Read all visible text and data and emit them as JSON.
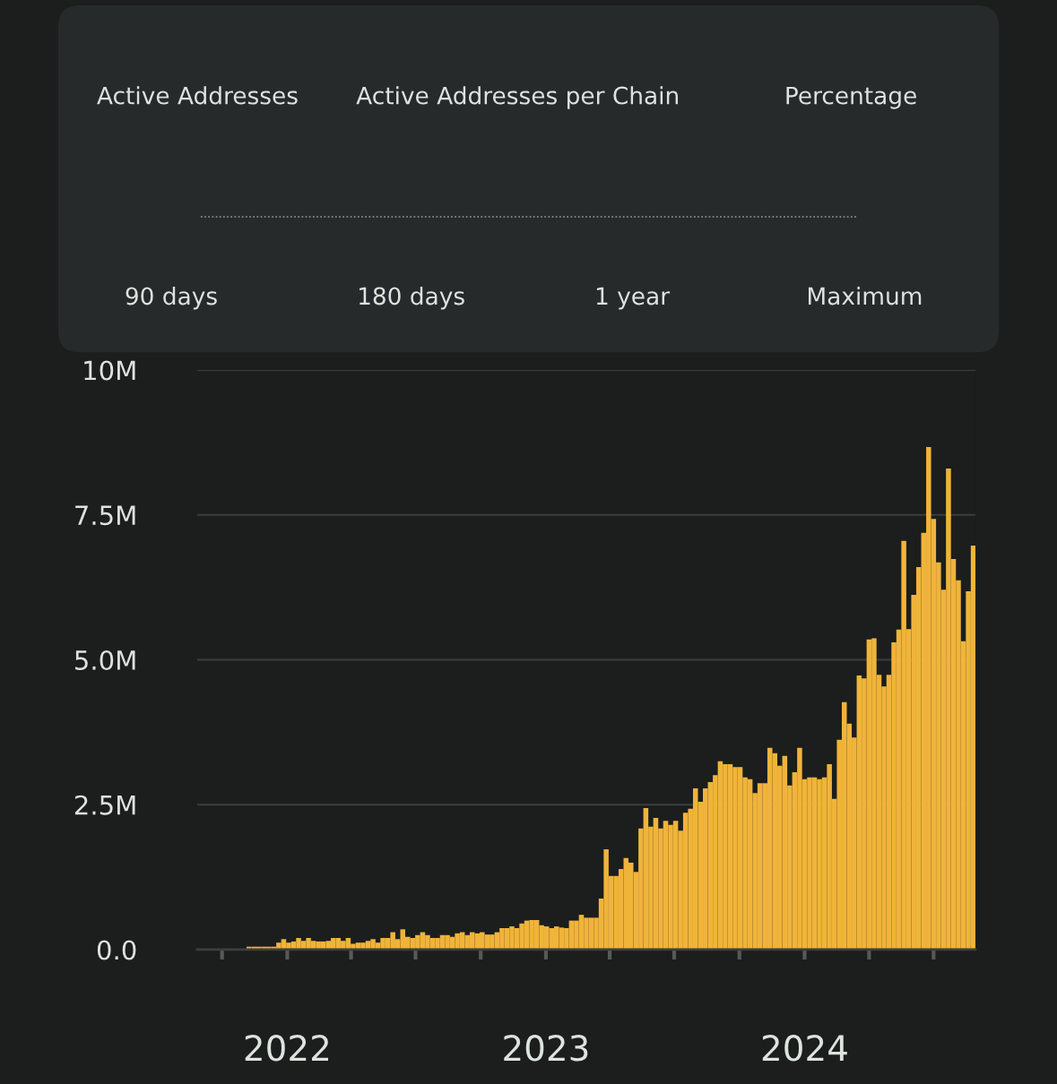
{
  "chart_data": {
    "type": "bar",
    "annotations": [
      "Active Addresses",
      "Active Addresses per Chain",
      "Percentage",
      "90 days",
      "180 days",
      "1 year",
      "Maximum"
    ],
    "x": [
      "2021-11-08",
      "2021-11-15",
      "2021-11-22",
      "2021-11-29",
      "2021-12-06",
      "2021-12-13",
      "2021-12-20",
      "2021-12-27",
      "2022-01-03",
      "2022-01-10",
      "2022-01-17",
      "2022-01-24",
      "2022-01-31",
      "2022-02-07",
      "2022-02-14",
      "2022-02-21",
      "2022-02-28",
      "2022-03-07",
      "2022-03-14",
      "2022-03-21",
      "2022-03-28",
      "2022-04-04",
      "2022-04-11",
      "2022-04-18",
      "2022-04-25",
      "2022-05-02",
      "2022-05-09",
      "2022-05-16",
      "2022-05-23",
      "2022-05-30",
      "2022-06-06",
      "2022-06-13",
      "2022-06-20",
      "2022-06-27",
      "2022-07-04",
      "2022-07-11",
      "2022-07-18",
      "2022-07-25",
      "2022-08-01",
      "2022-08-08",
      "2022-08-15",
      "2022-08-22",
      "2022-08-29",
      "2022-09-05",
      "2022-09-12",
      "2022-09-19",
      "2022-09-26",
      "2022-10-03",
      "2022-10-10",
      "2022-10-17",
      "2022-10-24",
      "2022-10-31",
      "2022-11-07",
      "2022-11-14",
      "2022-11-21",
      "2022-11-28",
      "2022-12-05",
      "2022-12-12",
      "2022-12-19",
      "2022-12-26",
      "2023-01-02",
      "2023-01-09",
      "2023-01-16",
      "2023-01-23",
      "2023-01-30",
      "2023-02-06",
      "2023-02-13",
      "2023-02-20",
      "2023-02-27",
      "2023-03-06",
      "2023-03-13",
      "2023-03-20",
      "2023-03-27",
      "2023-04-03",
      "2023-04-10",
      "2023-04-17",
      "2023-04-24",
      "2023-05-01",
      "2023-05-08",
      "2023-05-15",
      "2023-05-22",
      "2023-05-29",
      "2023-06-05",
      "2023-06-12",
      "2023-06-19",
      "2023-06-26",
      "2023-07-03",
      "2023-07-10",
      "2023-07-17",
      "2023-07-24",
      "2023-07-31",
      "2023-08-07",
      "2023-08-14",
      "2023-08-21",
      "2023-08-28",
      "2023-09-04",
      "2023-09-11",
      "2023-09-18",
      "2023-09-25",
      "2023-10-02",
      "2023-10-09",
      "2023-10-16",
      "2023-10-23",
      "2023-10-30",
      "2023-11-06",
      "2023-11-13",
      "2023-11-20",
      "2023-11-27",
      "2023-12-04",
      "2023-12-11",
      "2023-12-18",
      "2023-12-25",
      "2024-01-01",
      "2024-01-08",
      "2024-01-15",
      "2024-01-22",
      "2024-01-29",
      "2024-02-05",
      "2024-02-12",
      "2024-02-19",
      "2024-02-26",
      "2024-03-04",
      "2024-03-11",
      "2024-03-18",
      "2024-03-25",
      "2024-04-01",
      "2024-04-08",
      "2024-04-15",
      "2024-04-22",
      "2024-04-29",
      "2024-05-06",
      "2024-05-13",
      "2024-05-20",
      "2024-05-27",
      "2024-06-03",
      "2024-06-10",
      "2024-06-17",
      "2024-06-24",
      "2024-07-01",
      "2024-07-08",
      "2024-07-15",
      "2024-07-22",
      "2024-07-29",
      "2024-08-05",
      "2024-08-12",
      "2024-08-19",
      "2024-08-26"
    ],
    "values": [
      0.05,
      0.05,
      0.05,
      0.05,
      0.05,
      0.05,
      0.12,
      0.18,
      0.12,
      0.14,
      0.2,
      0.15,
      0.2,
      0.15,
      0.14,
      0.14,
      0.15,
      0.2,
      0.2,
      0.15,
      0.2,
      0.1,
      0.12,
      0.12,
      0.15,
      0.18,
      0.12,
      0.2,
      0.2,
      0.3,
      0.18,
      0.35,
      0.22,
      0.2,
      0.25,
      0.3,
      0.25,
      0.2,
      0.2,
      0.25,
      0.25,
      0.22,
      0.28,
      0.3,
      0.25,
      0.3,
      0.28,
      0.3,
      0.26,
      0.26,
      0.3,
      0.37,
      0.37,
      0.4,
      0.37,
      0.45,
      0.5,
      0.51,
      0.51,
      0.42,
      0.4,
      0.37,
      0.4,
      0.38,
      0.37,
      0.5,
      0.5,
      0.6,
      0.55,
      0.55,
      0.55,
      0.88,
      1.73,
      1.27,
      1.27,
      1.39,
      1.58,
      1.5,
      1.34,
      2.09,
      2.44,
      2.12,
      2.27,
      2.09,
      2.22,
      2.15,
      2.22,
      2.05,
      2.36,
      2.43,
      2.78,
      2.55,
      2.78,
      2.89,
      3.01,
      3.25,
      3.2,
      3.2,
      3.15,
      3.15,
      2.97,
      2.94,
      2.7,
      2.87,
      2.87,
      3.48,
      3.39,
      3.17,
      3.34,
      2.83,
      3.06,
      3.48,
      2.94,
      2.97,
      2.97,
      2.94,
      2.97,
      3.2,
      2.6,
      3.62,
      4.27,
      3.9,
      3.66,
      4.73,
      4.68,
      5.35,
      5.37,
      4.74,
      4.54,
      4.74,
      5.3,
      5.52,
      7.05,
      5.53,
      6.12,
      6.6,
      7.19,
      8.67,
      7.43,
      6.68,
      6.21,
      8.3,
      6.74,
      6.37,
      5.32,
      6.18,
      6.97
    ],
    "color": "#f0b43a",
    "xlim": [
      "2021-08-27",
      "2024-08-29"
    ],
    "xticks": [
      {
        "value": "2021-10-01",
        "label": null
      },
      {
        "value": "2022-01-01",
        "label": "2022"
      },
      {
        "value": "2022-04-01",
        "label": null
      },
      {
        "value": "2022-07-01",
        "label": null
      },
      {
        "value": "2022-10-01",
        "label": null
      },
      {
        "value": "2023-01-01",
        "label": "2023"
      },
      {
        "value": "2023-04-01",
        "label": null
      },
      {
        "value": "2023-07-01",
        "label": null
      },
      {
        "value": "2023-10-01",
        "label": null
      },
      {
        "value": "2024-01-01",
        "label": "2024"
      },
      {
        "value": "2024-04-01",
        "label": null
      },
      {
        "value": "2024-07-01",
        "label": null
      }
    ],
    "ylim": [
      0,
      10
    ],
    "yticks": [
      {
        "value": 0,
        "label": "0.0"
      },
      {
        "value": 2.5,
        "label": "2.5M"
      },
      {
        "value": 5,
        "label": "5.0M"
      },
      {
        "value": 7.5,
        "label": "7.5M"
      },
      {
        "value": 10,
        "label": "10M"
      }
    ],
    "grid": "y"
  }
}
